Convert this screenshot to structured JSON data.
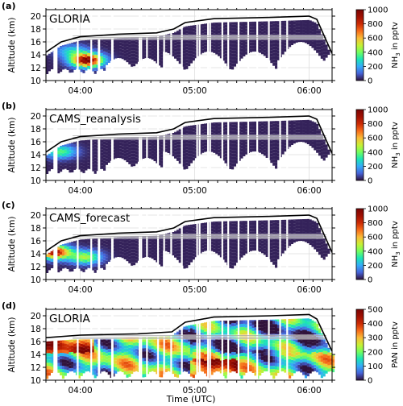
{
  "figure": {
    "xlabel": "Time (UTC)",
    "xtick_labels": [
      "04:00",
      "05:00",
      "06:00"
    ]
  },
  "chart_data": [
    {
      "type": "heatmap",
      "panel_label": "(a)",
      "label": "GLORIA",
      "xlabel": "",
      "ylabel": "Altitude (km)",
      "x_range": [
        "03:42",
        "06:12"
      ],
      "ylim": [
        10,
        21
      ],
      "yticks": [
        10,
        12,
        14,
        16,
        18,
        20
      ],
      "colorbar": {
        "label_main": "NH",
        "label_sub": "3",
        "label_tail": " in pptv",
        "range": [
          0,
          1000
        ],
        "ticks": [
          0,
          200,
          400,
          600,
          800,
          1000
        ],
        "colormap": "turbo"
      },
      "flight_altitude": [
        {
          "t": "03:42",
          "alt": 14.4
        },
        {
          "t": "03:50",
          "alt": 16.0
        },
        {
          "t": "04:00",
          "alt": 16.8
        },
        {
          "t": "04:20",
          "alt": 17.2
        },
        {
          "t": "04:40",
          "alt": 17.4
        },
        {
          "t": "04:49",
          "alt": 18.0
        },
        {
          "t": "04:55",
          "alt": 19.0
        },
        {
          "t": "05:10",
          "alt": 19.6
        },
        {
          "t": "05:40",
          "alt": 19.8
        },
        {
          "t": "06:00",
          "alt": 20.0
        },
        {
          "t": "06:04",
          "alt": 19.5
        },
        {
          "t": "06:12",
          "alt": 14.2
        }
      ],
      "hotspots": [
        {
          "t": "04:03",
          "alt": 12.9,
          "value": 1000
        },
        {
          "t": "03:55",
          "alt": 14.3,
          "value": 250
        }
      ]
    },
    {
      "type": "heatmap",
      "panel_label": "(b)",
      "label": "CAMS_reanalysis",
      "xlabel": "",
      "ylabel": "Altitude (km)",
      "x_range": [
        "03:42",
        "06:12"
      ],
      "ylim": [
        10,
        21
      ],
      "yticks": [
        10,
        12,
        14,
        16,
        18,
        20
      ],
      "colorbar": {
        "label_main": "NH",
        "label_sub": "3",
        "label_tail": " in pptv",
        "range": [
          0,
          1000
        ],
        "ticks": [
          0,
          200,
          400,
          600,
          800,
          1000
        ],
        "colormap": "turbo"
      },
      "flight_altitude": [
        {
          "t": "03:42",
          "alt": 14.4
        },
        {
          "t": "03:50",
          "alt": 16.0
        },
        {
          "t": "04:00",
          "alt": 16.8
        },
        {
          "t": "04:20",
          "alt": 17.2
        },
        {
          "t": "04:40",
          "alt": 17.4
        },
        {
          "t": "04:49",
          "alt": 18.0
        },
        {
          "t": "04:55",
          "alt": 19.0
        },
        {
          "t": "05:10",
          "alt": 19.6
        },
        {
          "t": "05:40",
          "alt": 19.8
        },
        {
          "t": "06:00",
          "alt": 20.0
        },
        {
          "t": "06:04",
          "alt": 19.5
        },
        {
          "t": "06:12",
          "alt": 14.2
        }
      ],
      "hotspots": [
        {
          "t": "03:49",
          "alt": 14.2,
          "value": 350
        }
      ]
    },
    {
      "type": "heatmap",
      "panel_label": "(c)",
      "label": "CAMS_forecast",
      "xlabel": "",
      "ylabel": "Altitude (km)",
      "x_range": [
        "03:42",
        "06:12"
      ],
      "ylim": [
        10,
        21
      ],
      "yticks": [
        10,
        12,
        14,
        16,
        18,
        20
      ],
      "colorbar": {
        "label_main": "NH",
        "label_sub": "3",
        "label_tail": " in pptv",
        "range": [
          0,
          1000
        ],
        "ticks": [
          0,
          200,
          400,
          600,
          800,
          1000
        ],
        "colormap": "turbo"
      },
      "flight_altitude": [
        {
          "t": "03:42",
          "alt": 14.4
        },
        {
          "t": "03:50",
          "alt": 16.0
        },
        {
          "t": "04:00",
          "alt": 16.8
        },
        {
          "t": "04:20",
          "alt": 17.2
        },
        {
          "t": "04:40",
          "alt": 17.4
        },
        {
          "t": "04:49",
          "alt": 18.0
        },
        {
          "t": "04:55",
          "alt": 19.0
        },
        {
          "t": "05:10",
          "alt": 19.6
        },
        {
          "t": "05:40",
          "alt": 19.8
        },
        {
          "t": "06:00",
          "alt": 20.0
        },
        {
          "t": "06:04",
          "alt": 19.5
        },
        {
          "t": "06:12",
          "alt": 14.2
        }
      ],
      "hotspots": [
        {
          "t": "03:46",
          "alt": 14.0,
          "value": 900
        },
        {
          "t": "04:02",
          "alt": 13.2,
          "value": 450
        }
      ]
    },
    {
      "type": "heatmap",
      "panel_label": "(d)",
      "label": "GLORIA",
      "xlabel": "Time (UTC)",
      "ylabel": "Altitude (km)",
      "x_range": [
        "03:42",
        "06:12"
      ],
      "ylim": [
        10,
        21
      ],
      "yticks": [
        10,
        12,
        14,
        16,
        18,
        20
      ],
      "colorbar": {
        "label_main": "PAN",
        "label_sub": "",
        "label_tail": " in pptv",
        "range": [
          0,
          500
        ],
        "ticks": [
          0,
          100,
          200,
          300,
          400,
          500
        ],
        "colormap": "turbo"
      },
      "flight_altitude": [
        {
          "t": "03:42",
          "alt": 16.6
        },
        {
          "t": "04:00",
          "alt": 17.0
        },
        {
          "t": "04:30",
          "alt": 17.2
        },
        {
          "t": "04:48",
          "alt": 17.5
        },
        {
          "t": "04:55",
          "alt": 19.0
        },
        {
          "t": "05:10",
          "alt": 19.8
        },
        {
          "t": "05:40",
          "alt": 20.0
        },
        {
          "t": "06:00",
          "alt": 20.2
        },
        {
          "t": "06:04",
          "alt": 19.5
        },
        {
          "t": "06:12",
          "alt": 14.5
        }
      ],
      "hotspots": [
        {
          "t": "03:50",
          "alt": 15.5,
          "value": 450
        },
        {
          "t": "05:05",
          "alt": 11.8,
          "value": 500
        },
        {
          "t": "05:15",
          "alt": 12.0,
          "value": 480
        }
      ]
    }
  ]
}
